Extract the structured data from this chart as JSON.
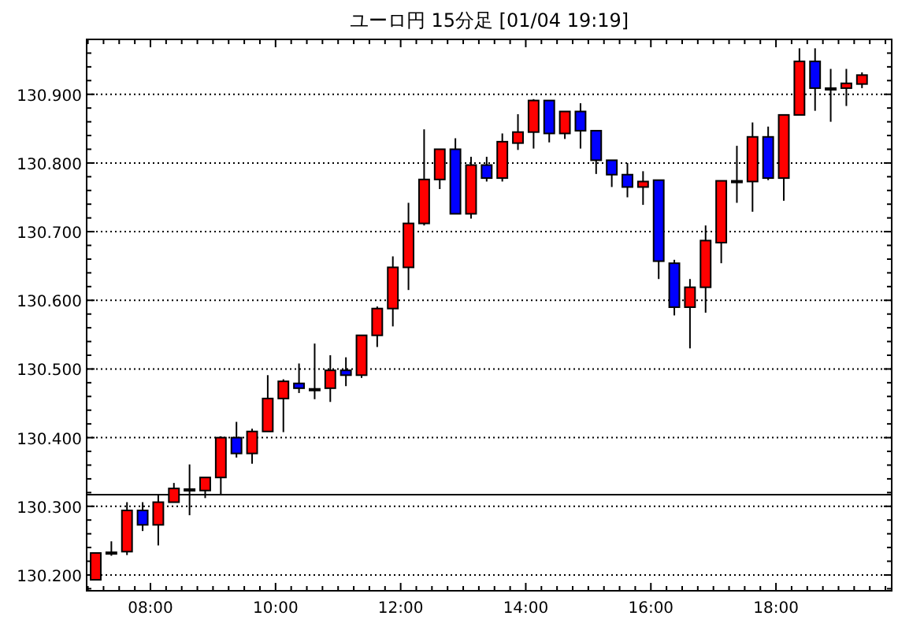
{
  "chart_data": {
    "type": "candlestick",
    "title": "ユーロ円 15分足 [01/04 19:19]",
    "x": [
      7.125,
      7.375,
      7.625,
      7.875,
      8.125,
      8.375,
      8.625,
      8.875,
      9.125,
      9.375,
      9.625,
      9.875,
      10.125,
      10.375,
      10.625,
      10.875,
      11.125,
      11.375,
      11.625,
      11.875,
      12.125,
      12.375,
      12.625,
      12.875,
      13.125,
      13.375,
      13.625,
      13.875,
      14.125,
      14.375,
      14.625,
      14.875,
      15.125,
      15.375,
      15.625,
      15.875,
      16.125,
      16.375,
      16.625,
      16.875,
      17.125,
      17.375,
      17.625,
      17.875,
      18.125,
      18.375,
      18.625,
      18.875,
      19.125,
      19.375
    ],
    "ohlc": [
      [
        130.193,
        130.232,
        130.193,
        130.232
      ],
      [
        130.233,
        130.249,
        130.228,
        130.233
      ],
      [
        130.234,
        130.306,
        130.229,
        130.294
      ],
      [
        130.294,
        130.306,
        130.264,
        130.273
      ],
      [
        130.273,
        130.318,
        130.243,
        130.306
      ],
      [
        130.306,
        130.334,
        130.306,
        130.326
      ],
      [
        130.325,
        130.361,
        130.287,
        130.325
      ],
      [
        130.323,
        130.342,
        130.312,
        130.342
      ],
      [
        130.342,
        130.402,
        130.318,
        130.4
      ],
      [
        130.4,
        130.423,
        130.371,
        130.377
      ],
      [
        130.377,
        130.413,
        130.362,
        130.409
      ],
      [
        130.409,
        130.491,
        130.409,
        130.457
      ],
      [
        130.457,
        130.485,
        130.408,
        130.482
      ],
      [
        130.479,
        130.508,
        130.465,
        130.472
      ],
      [
        130.471,
        130.537,
        130.456,
        130.471
      ],
      [
        130.472,
        130.52,
        130.452,
        130.498
      ],
      [
        130.498,
        130.517,
        130.475,
        130.491
      ],
      [
        130.491,
        130.549,
        130.487,
        130.549
      ],
      [
        130.549,
        130.591,
        130.532,
        130.588
      ],
      [
        130.588,
        130.664,
        130.562,
        130.648
      ],
      [
        130.648,
        130.742,
        130.615,
        130.712
      ],
      [
        130.712,
        130.849,
        130.709,
        130.776
      ],
      [
        130.776,
        130.82,
        130.762,
        130.82
      ],
      [
        130.82,
        130.836,
        130.726,
        130.726
      ],
      [
        130.726,
        130.809,
        130.719,
        130.797
      ],
      [
        130.797,
        130.809,
        130.773,
        130.778
      ],
      [
        130.778,
        130.843,
        130.773,
        130.831
      ],
      [
        130.829,
        130.871,
        130.819,
        130.845
      ],
      [
        130.845,
        130.893,
        130.821,
        130.891
      ],
      [
        130.891,
        130.891,
        130.83,
        130.843
      ],
      [
        130.843,
        130.875,
        130.835,
        130.875
      ],
      [
        130.875,
        130.887,
        130.821,
        130.847
      ],
      [
        130.847,
        130.847,
        130.784,
        130.804
      ],
      [
        130.804,
        130.804,
        130.765,
        130.783
      ],
      [
        130.783,
        130.8,
        130.75,
        130.765
      ],
      [
        130.765,
        130.788,
        130.739,
        130.773
      ],
      [
        130.775,
        130.775,
        130.631,
        130.657
      ],
      [
        130.654,
        130.659,
        130.578,
        130.59
      ],
      [
        130.59,
        130.631,
        130.53,
        130.619
      ],
      [
        130.619,
        130.709,
        130.582,
        130.687
      ],
      [
        130.684,
        130.774,
        130.654,
        130.774
      ],
      [
        130.774,
        130.825,
        130.742,
        130.774
      ],
      [
        130.773,
        130.859,
        130.729,
        130.838
      ],
      [
        130.838,
        130.853,
        130.775,
        130.778
      ],
      [
        130.778,
        130.87,
        130.745,
        130.87
      ],
      [
        130.87,
        130.967,
        130.87,
        130.948
      ],
      [
        130.948,
        130.967,
        130.876,
        130.909
      ],
      [
        130.909,
        130.937,
        130.86,
        130.909
      ],
      [
        130.909,
        130.937,
        130.883,
        130.916
      ],
      [
        130.915,
        130.932,
        130.909,
        130.928
      ]
    ],
    "colors": [
      "#ff0000",
      "#000000",
      "#ff0000",
      "#0000ff",
      "#ff0000",
      "#ff0000",
      "#000000",
      "#ff0000",
      "#ff0000",
      "#0000ff",
      "#ff0000",
      "#ff0000",
      "#ff0000",
      "#0000ff",
      "#000000",
      "#ff0000",
      "#0000ff",
      "#ff0000",
      "#ff0000",
      "#ff0000",
      "#ff0000",
      "#ff0000",
      "#ff0000",
      "#0000ff",
      "#ff0000",
      "#0000ff",
      "#ff0000",
      "#ff0000",
      "#ff0000",
      "#0000ff",
      "#ff0000",
      "#0000ff",
      "#0000ff",
      "#0000ff",
      "#0000ff",
      "#ff0000",
      "#0000ff",
      "#0000ff",
      "#ff0000",
      "#ff0000",
      "#ff0000",
      "#000000",
      "#ff0000",
      "#0000ff",
      "#ff0000",
      "#ff0000",
      "#0000ff",
      "#000000",
      "#ff0000",
      "#ff0000"
    ],
    "xlim": [
      6.98,
      19.85
    ],
    "xticks": [
      {
        "value": 8,
        "label": "08:00"
      },
      {
        "value": 10,
        "label": "10:00"
      },
      {
        "value": 12,
        "label": "12:00"
      },
      {
        "value": 14,
        "label": "14:00"
      },
      {
        "value": 16,
        "label": "16:00"
      },
      {
        "value": 18,
        "label": "18:00"
      }
    ],
    "ylim": [
      130.177,
      130.98
    ],
    "yticks": [
      {
        "value": 130.2,
        "label": "130.200"
      },
      {
        "value": 130.3,
        "label": "130.300"
      },
      {
        "value": 130.4,
        "label": "130.400"
      },
      {
        "value": 130.5,
        "label": "130.500"
      },
      {
        "value": 130.6,
        "label": "130.600"
      },
      {
        "value": 130.7,
        "label": "130.700"
      },
      {
        "value": 130.8,
        "label": "130.800"
      },
      {
        "value": 130.9,
        "label": "130.900"
      }
    ],
    "grid": "y",
    "ref_lines": [
      {
        "axis": "y",
        "value": 130.317,
        "color": "#000000"
      }
    ]
  }
}
